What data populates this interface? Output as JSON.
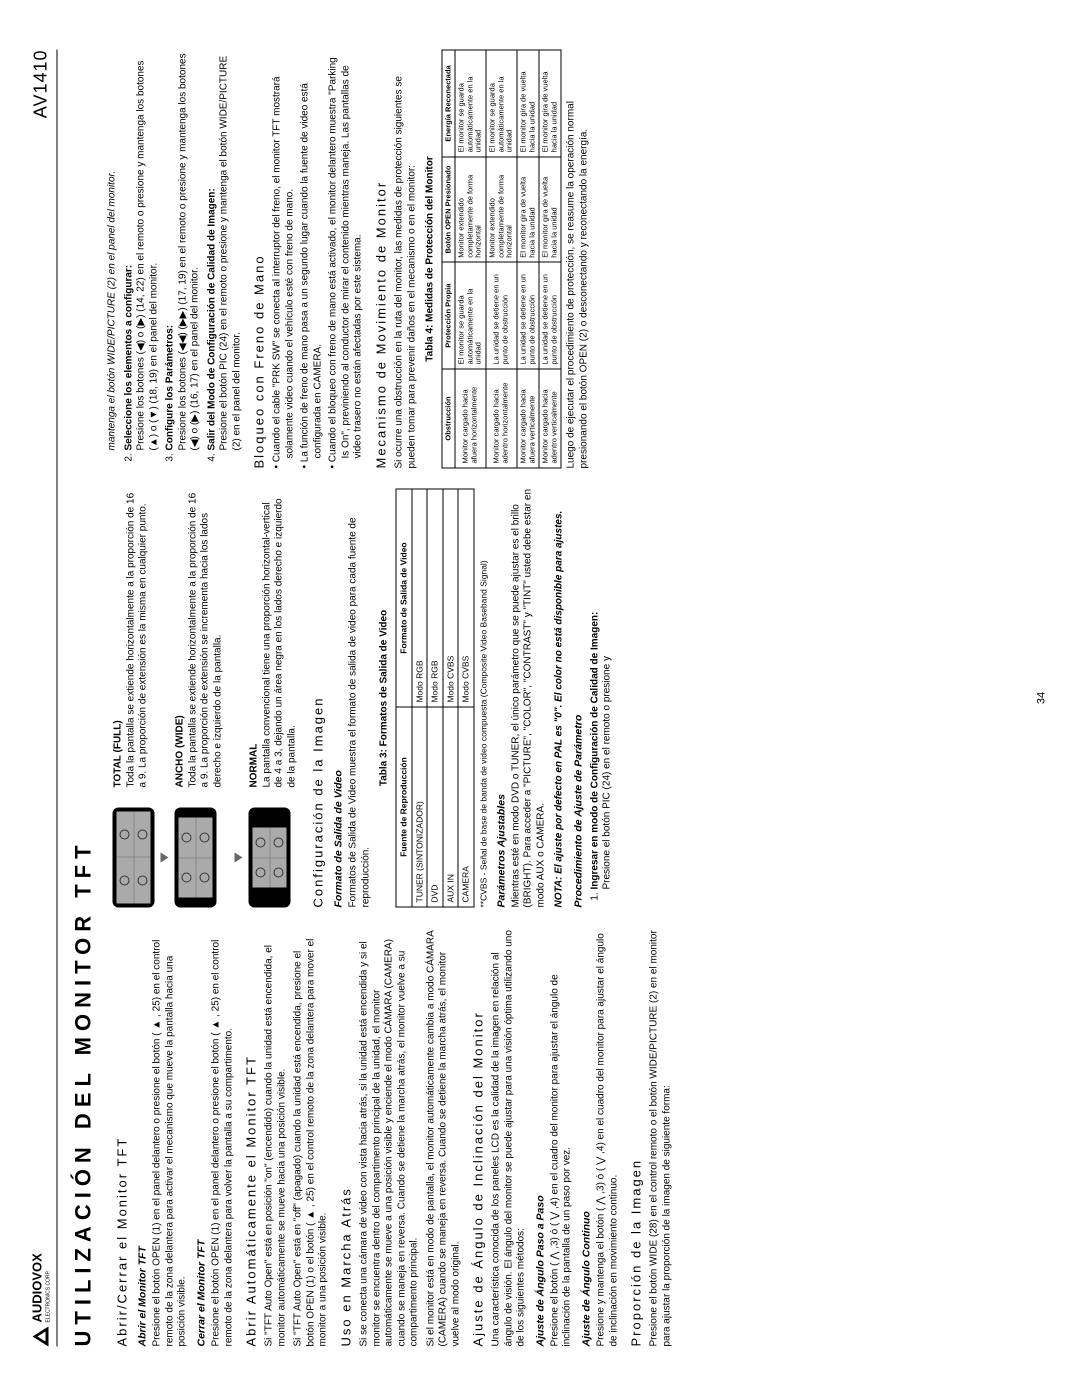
{
  "header": {
    "brand": "AUDIOVOX",
    "brand_sub": "ELECTRONICS CORP.",
    "model": "AV1410"
  },
  "title": "UTILIZACIÓN DEL MONITOR TFT",
  "col1": {
    "s1_title": "Abrir/Cerrar el Monitor TFT",
    "s1a_h": "Abrir el Monitor TFT",
    "s1a_p": "Presione el botón OPEN (1) en el panel delantero o presione el botón ( ▲ , 25) en el control remoto de la zona delantera para activar el mecanismo que mueve la pantalla hacia una posición visible.",
    "s1b_h": "Cerrar el Monitor TFT",
    "s1b_p": "Presione el botón OPEN (1) en el panel delantero o presione el botón ( ▲ , 25) en el control remoto de la zona delantera para volver la pantalla a su compartimento.",
    "s2_title": "Abrir Automáticamente el Monitor TFT",
    "s2_p1": "Si \"TFT Auto Open\" está en posición \"on\" (encendido) cuando la unidad está encendida, el monitor automáticamente se mueve hacia una posición visible.",
    "s2_p2": "Si \"TFT Auto Open\" está en \"off\" (apagado) cuando la unidad está encendida, presione el botón OPEN (1) o el botón ( ▲ , 25) en el control remoto de la zona delantera para mover el monitor a una posición visible.",
    "s3_title": "Uso en Marcha Atrás",
    "s3_p1": "Si se conecta una cámara de video con vista hacia atrás, si la unidad está encendida y si el monitor se encuentra dentro del compartimento principal de la unidad, el monitor automáticamente se mueve a una posición visible y enciende el modo CÁMARA (CAMERA) cuando se maneja en reversa. Cuando se detiene la marcha atrás, el monitor vuelve a su compartimento principal.",
    "s3_p2": "Si el monitor está en modo de pantalla, el monitor automáticamente cambia a modo CÁMARA (CAMERA) cuando se maneja en reversa. Cuando se detiene la marcha atrás, el monitor vuelve al modo original.",
    "s4_title": "Ajuste de Ángulo de Inclinación del Monitor",
    "s4_p": "Una característica conocida de los paneles LCD es la calidad de la imagen en relación al ángulo de visión. El ángulo del monitor se puede ajustar para una visión óptima utilizando uno de los siguientes métodos:",
    "s4a_h": "Ajuste de Ángulo Paso a Paso",
    "s4a_p": "Presione el botón ( ⋀ ,3) ó ( ⋁ ,4) en el cuadro del monitor para ajustar el ángulo de inclinación de la pantalla de un paso por vez.",
    "s4b_h": "Ajuste de Ángulo Continuo",
    "s4b_p": "Presione y mantenga el botón ( ⋀ ,3) ó ( ⋁ ,4) en el cuadro del monitor para ajustar el ángulo de inclinación en movimiento continuo.",
    "s5_title": "Proporción de la Imagen",
    "s5_p": "Presione el botón WIDE (28) en el control remoto o el botón WIDE/PICTURE (2) en el monitor para ajustar la proporción de la imagen de siguiente forma:"
  },
  "col2": {
    "aspect": {
      "full_h": "TOTAL (FULL)",
      "full_p": "Toda la pantalla se extiende horizontalmente a la proporción de 16 a 9. La proporción de extensión es la misma en cualquier punto.",
      "wide_h": "ANCHO (WIDE)",
      "wide_p": "Toda la pantalla se extiende horizontalmente a la proporción de 16 a 9. La proporción de extensión se incrementa hacia los lados derecho e izquierdo de la pantalla.",
      "norm_h": "NORMAL",
      "norm_p": "La pantalla convencional tiene una proporción horizontal-vertical de 4 a 3, dejando un área negra en los lados derecho e izquierdo de la pantalla."
    },
    "s6_title": "Configuración de la Imagen",
    "s6a_h": "Formato de Salida de Video",
    "s6a_p": "Formatos de Salida de Video muestra el formato de salida de video para cada fuente de reproducción.",
    "table3_title": "Tabla 3: Formatos de Salida de Video",
    "table3": {
      "h1": "Fuente de Reproducción",
      "h2": "Formato de Salida de Video",
      "rows": [
        [
          "TUNER (SINTONIZADOR)",
          "Modo RGB"
        ],
        [
          "DVD",
          "Modo RGB"
        ],
        [
          "AUX IN",
          "Modo CVBS"
        ],
        [
          "CAMERA",
          "Modo CVBS"
        ]
      ]
    },
    "cvbs_note": "**CVBS - Señal de base de banda de video compuesta (Composite Video Baseband Signal)",
    "s6b_h": "Parámetros Ajustables",
    "s6b_p": "Mientras esté en modo DVD o TUNER, el único parámetro que se puede ajustar es el brillo (BRIGHT). Para acceder a \"PICTURE\", \"COLOR\", \"CONTRAST\" y \"TINT\" usted debe estar en modo AUX o CAMERA.",
    "note_pal": "NOTA: El ajuste por defecto en PAL es \"0\". El color no está disponible para ajustes.",
    "s6c_h": "Procedimiento de Ajuste de Parámetro",
    "s6c_li1_h": "Ingresar en modo de Configuración de Calidad de Imagen:",
    "s6c_li1_p": "Presione el botón PIC (24) en el remoto o presione y"
  },
  "col3": {
    "cont1": "mantenga el botón WIDE/PICTURE (2) en el panel del monitor.",
    "li2_h": "Seleccione los elementos a configurar:",
    "li2_p": "Presione los botones (◀) o (▶) (14, 22) en el remoto o presione y mantenga los botones (▲) o (▼) (18, 19) en el panel del monitor.",
    "li3_h": "Configure los Parámetros:",
    "li3_p": "Presione los botones (◀◀) (▶▶) (17, 19) en el remoto o presione y mantenga los botones (◀) o (▶) (16, 17) en el panel del monitor.",
    "li4_h": "Salir del Modo de Configuración de Calidad de Imagen:",
    "li4_p": "Presione el botón PIC (24) en el remoto o presione y mantenga el botón WIDE/PICTURE (2) en el panel del monitor.",
    "s7_title": "Bloqueo con Freno de Mano",
    "s7_b1": "Cuando el cable \"PRK SW\" se conecta al interruptor del freno, el monitor TFT mostrará solamente video cuando el vehículo esté con freno de mano.",
    "s7_b2": "La función de freno de mano pasa a un segundo lugar cuando la fuente de video está configurada en CAMERA.",
    "s7_b3": "Cuando el bloqueo con freno de mano está activado, el monitor delantero muestra \"Parking Is On\", previniendo al conductor de mirar el contenido mientras maneja. Las pantallas de video trasero no están afectadas por este sistema.",
    "s8_title": "Mecanismo de Movimiento de Monitor",
    "s8_p": "Si ocurre una obstrucción en la ruta del monitor, las medidas de protección siguientes se pueden tomar para prevenir daños en el mecanismo o en el monitor:",
    "table4_title": "Tabla 4: Medidas de Protección del Monitor",
    "table4": {
      "h1": "Obstrucción",
      "h2": "Protección Propia",
      "h3": "Botón OPEN Presionado",
      "h4": "Energía Reconectada",
      "rows": [
        [
          "Monitor cargado hacia afuera horizontalmente",
          "El monitor se guarda automáticamente en la unidad",
          "Monitor extendido completamente de forma horizontal",
          "El monitor se guarda automáticamente en la unidad"
        ],
        [
          "Monitor cargado hacia adentro horizontalmente",
          "La unidad se detiene en un punto de obstrucción",
          "Monitor extendido completamente de forma horizontal",
          "El monitor se guarda automáticamente en la unidad"
        ],
        [
          "Monitor cargado hacia afuera verticalmente",
          "La unidad se detiene en un punto de obstrucción",
          "El monitor gira de vuelta hacia la unidad",
          "El monitor gira de vuelta hacia la unidad"
        ],
        [
          "Monitor cargado hacia adentro verticalmente",
          "La unidad se detiene en un punto de obstrucción",
          "El monitor gira de vuelta hacia la unidad",
          "El monitor gira de vuelta hacia la unidad"
        ]
      ]
    },
    "s8_p2": "Luego de ejecutar el procedimiento de protección, se reasume la operación normal presionando el botón OPEN (2) o desconectando y reconectando la energía."
  },
  "footer": "34"
}
